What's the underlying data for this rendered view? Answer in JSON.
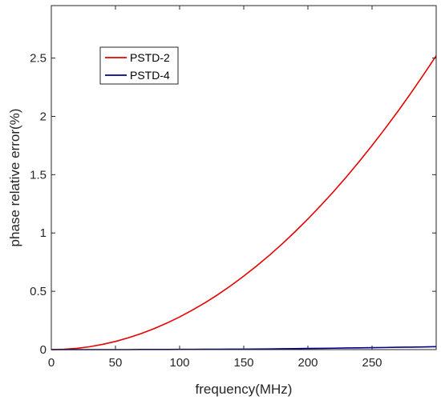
{
  "chart_data": {
    "type": "line",
    "title": "",
    "xlabel": "frequency(MHz)",
    "ylabel": "phase relative error(%)",
    "xlim": [
      0,
      300
    ],
    "ylim": [
      0,
      2.95
    ],
    "x_ticks": [
      0,
      50,
      100,
      150,
      200,
      250
    ],
    "x_tick_labels": [
      "0",
      "50",
      "100",
      "150",
      "200",
      "250"
    ],
    "y_ticks": [
      0,
      0.5,
      1,
      1.5,
      2,
      2.5
    ],
    "y_tick_labels": [
      "0",
      "0.5",
      "1",
      "1.5",
      "2",
      "2.5"
    ],
    "grid": false,
    "legend_position": "top-left",
    "x": [
      0,
      10,
      20,
      30,
      40,
      50,
      60,
      70,
      80,
      90,
      100,
      110,
      120,
      130,
      140,
      150,
      160,
      170,
      180,
      190,
      200,
      210,
      220,
      230,
      240,
      250,
      260,
      270,
      280,
      290,
      300
    ],
    "series": [
      {
        "name": "PSTD-2",
        "color": "#e60000",
        "values": [
          0,
          0.003,
          0.011,
          0.025,
          0.045,
          0.07,
          0.101,
          0.137,
          0.179,
          0.227,
          0.28,
          0.339,
          0.403,
          0.473,
          0.549,
          0.63,
          0.717,
          0.809,
          0.907,
          1.011,
          1.12,
          1.235,
          1.355,
          1.481,
          1.613,
          1.75,
          1.893,
          2.041,
          2.195,
          2.355,
          2.52
        ]
      },
      {
        "name": "PSTD-4",
        "color": "#00008b",
        "values": [
          0,
          0,
          0,
          0,
          0,
          0,
          0,
          0.001,
          0.001,
          0.001,
          0.002,
          0.002,
          0.003,
          0.003,
          0.004,
          0.004,
          0.005,
          0.006,
          0.007,
          0.008,
          0.01,
          0.011,
          0.012,
          0.014,
          0.015,
          0.017,
          0.018,
          0.02,
          0.021,
          0.023,
          0.025
        ]
      }
    ]
  }
}
